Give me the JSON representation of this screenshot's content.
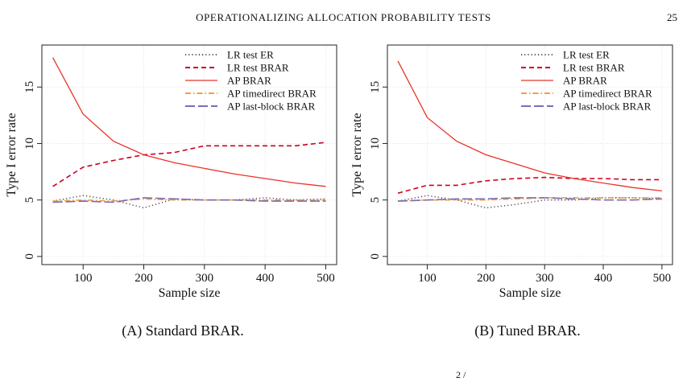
{
  "header": {
    "running_title": "OPERATIONALIZING ALLOCATION PROBABILITY TESTS",
    "page_number": "25"
  },
  "captions": [
    "(A) Standard BRAR.",
    "(B) Tuned BRAR."
  ],
  "bottom_fragment": "2 /",
  "chart_data": [
    {
      "type": "line",
      "caption": "(A) Standard BRAR.",
      "xlabel": "Sample size",
      "ylabel": "Type I error rate",
      "xlim": [
        50,
        500
      ],
      "ylim": [
        0,
        18
      ],
      "xticks": [
        100,
        200,
        300,
        400,
        500
      ],
      "yticks": [
        0,
        5,
        10,
        15
      ],
      "grid": true,
      "legend_position": "top-right",
      "x": [
        50,
        100,
        150,
        200,
        250,
        300,
        350,
        400,
        450,
        500
      ],
      "series": [
        {
          "name": "LR test ER",
          "color": "#555555",
          "style": "dotted",
          "values": [
            4.9,
            5.4,
            5.0,
            4.3,
            5.1,
            5.0,
            5.0,
            5.2,
            5.0,
            5.1
          ]
        },
        {
          "name": "LR test BRAR",
          "color": "#cc0022",
          "style": "dashed",
          "values": [
            6.2,
            7.9,
            8.5,
            9.0,
            9.2,
            9.8,
            9.8,
            9.8,
            9.8,
            10.1
          ]
        },
        {
          "name": "AP BRAR",
          "color": "#e8342a",
          "style": "solid",
          "values": [
            17.6,
            12.6,
            10.2,
            9.0,
            8.3,
            7.8,
            7.3,
            6.9,
            6.5,
            6.2
          ]
        },
        {
          "name": "AP timedirect BRAR",
          "color": "#f0a040",
          "style": "dotdash",
          "values": [
            4.9,
            5.0,
            4.9,
            5.1,
            5.0,
            5.0,
            5.0,
            5.0,
            5.0,
            5.0
          ]
        },
        {
          "name": "AP last-block BRAR",
          "color": "#7b6bb5",
          "style": "longdash",
          "values": [
            4.8,
            4.9,
            4.8,
            5.2,
            5.1,
            5.0,
            5.0,
            4.9,
            4.9,
            4.9
          ]
        }
      ]
    },
    {
      "type": "line",
      "caption": "(B) Tuned BRAR.",
      "xlabel": "Sample size",
      "ylabel": "Type I error rate",
      "xlim": [
        50,
        500
      ],
      "ylim": [
        0,
        18
      ],
      "xticks": [
        100,
        200,
        300,
        400,
        500
      ],
      "yticks": [
        0,
        5,
        10,
        15
      ],
      "grid": true,
      "legend_position": "top-right",
      "x": [
        50,
        100,
        150,
        200,
        250,
        300,
        350,
        400,
        450,
        500
      ],
      "series": [
        {
          "name": "LR test ER",
          "color": "#555555",
          "style": "dotted",
          "values": [
            4.9,
            5.4,
            5.0,
            4.3,
            4.6,
            5.0,
            5.0,
            5.2,
            5.2,
            5.1
          ]
        },
        {
          "name": "LR test BRAR",
          "color": "#cc0022",
          "style": "dashed",
          "values": [
            5.6,
            6.3,
            6.3,
            6.7,
            6.9,
            7.0,
            6.9,
            6.9,
            6.8,
            6.8
          ]
        },
        {
          "name": "AP BRAR",
          "color": "#e8342a",
          "style": "solid",
          "values": [
            17.3,
            12.3,
            10.2,
            9.0,
            8.2,
            7.4,
            6.9,
            6.5,
            6.1,
            5.8
          ]
        },
        {
          "name": "AP timedirect BRAR",
          "color": "#f0a040",
          "style": "dotdash",
          "values": [
            4.9,
            5.0,
            5.0,
            5.0,
            5.1,
            5.2,
            5.2,
            5.2,
            5.2,
            5.2
          ]
        },
        {
          "name": "AP last-block BRAR",
          "color": "#7b6bb5",
          "style": "longdash",
          "values": [
            4.9,
            5.0,
            5.1,
            5.1,
            5.2,
            5.2,
            5.1,
            5.0,
            5.0,
            5.1
          ]
        }
      ]
    }
  ]
}
